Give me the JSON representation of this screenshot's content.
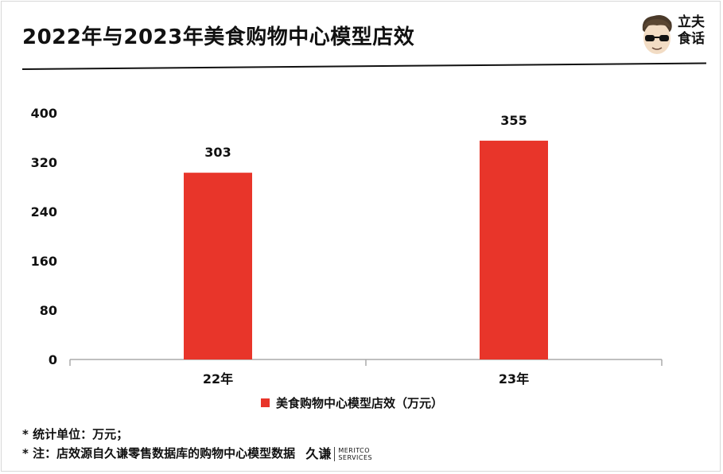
{
  "header": {
    "title": "2022年与2023年美食购物中心模型店效",
    "logo_text_line1": "立夫",
    "logo_text_line2": "食话",
    "logo_icon": "avatar-with-sunglasses-icon"
  },
  "chart_data": {
    "type": "bar",
    "categories": [
      "22年",
      "23年"
    ],
    "series": [
      {
        "name": "美食购物中心模型店效（万元）",
        "values": [
          303,
          355
        ]
      }
    ],
    "ylim": [
      0,
      400
    ],
    "yticks": [
      "0",
      "80",
      "160",
      "240",
      "320",
      "400"
    ],
    "data_labels": [
      "303",
      "355"
    ],
    "legend_position": "bottom",
    "grid": false,
    "bar_color": "#e8352a"
  },
  "notes": {
    "line1": "* 统计单位：万元；",
    "line2": "* 注：店效源自久谦零售数据库的购物中心模型数据"
  },
  "source_logo": {
    "cn": "久谦",
    "en_line1": "MERITCO",
    "en_line2": "SERVICES"
  }
}
